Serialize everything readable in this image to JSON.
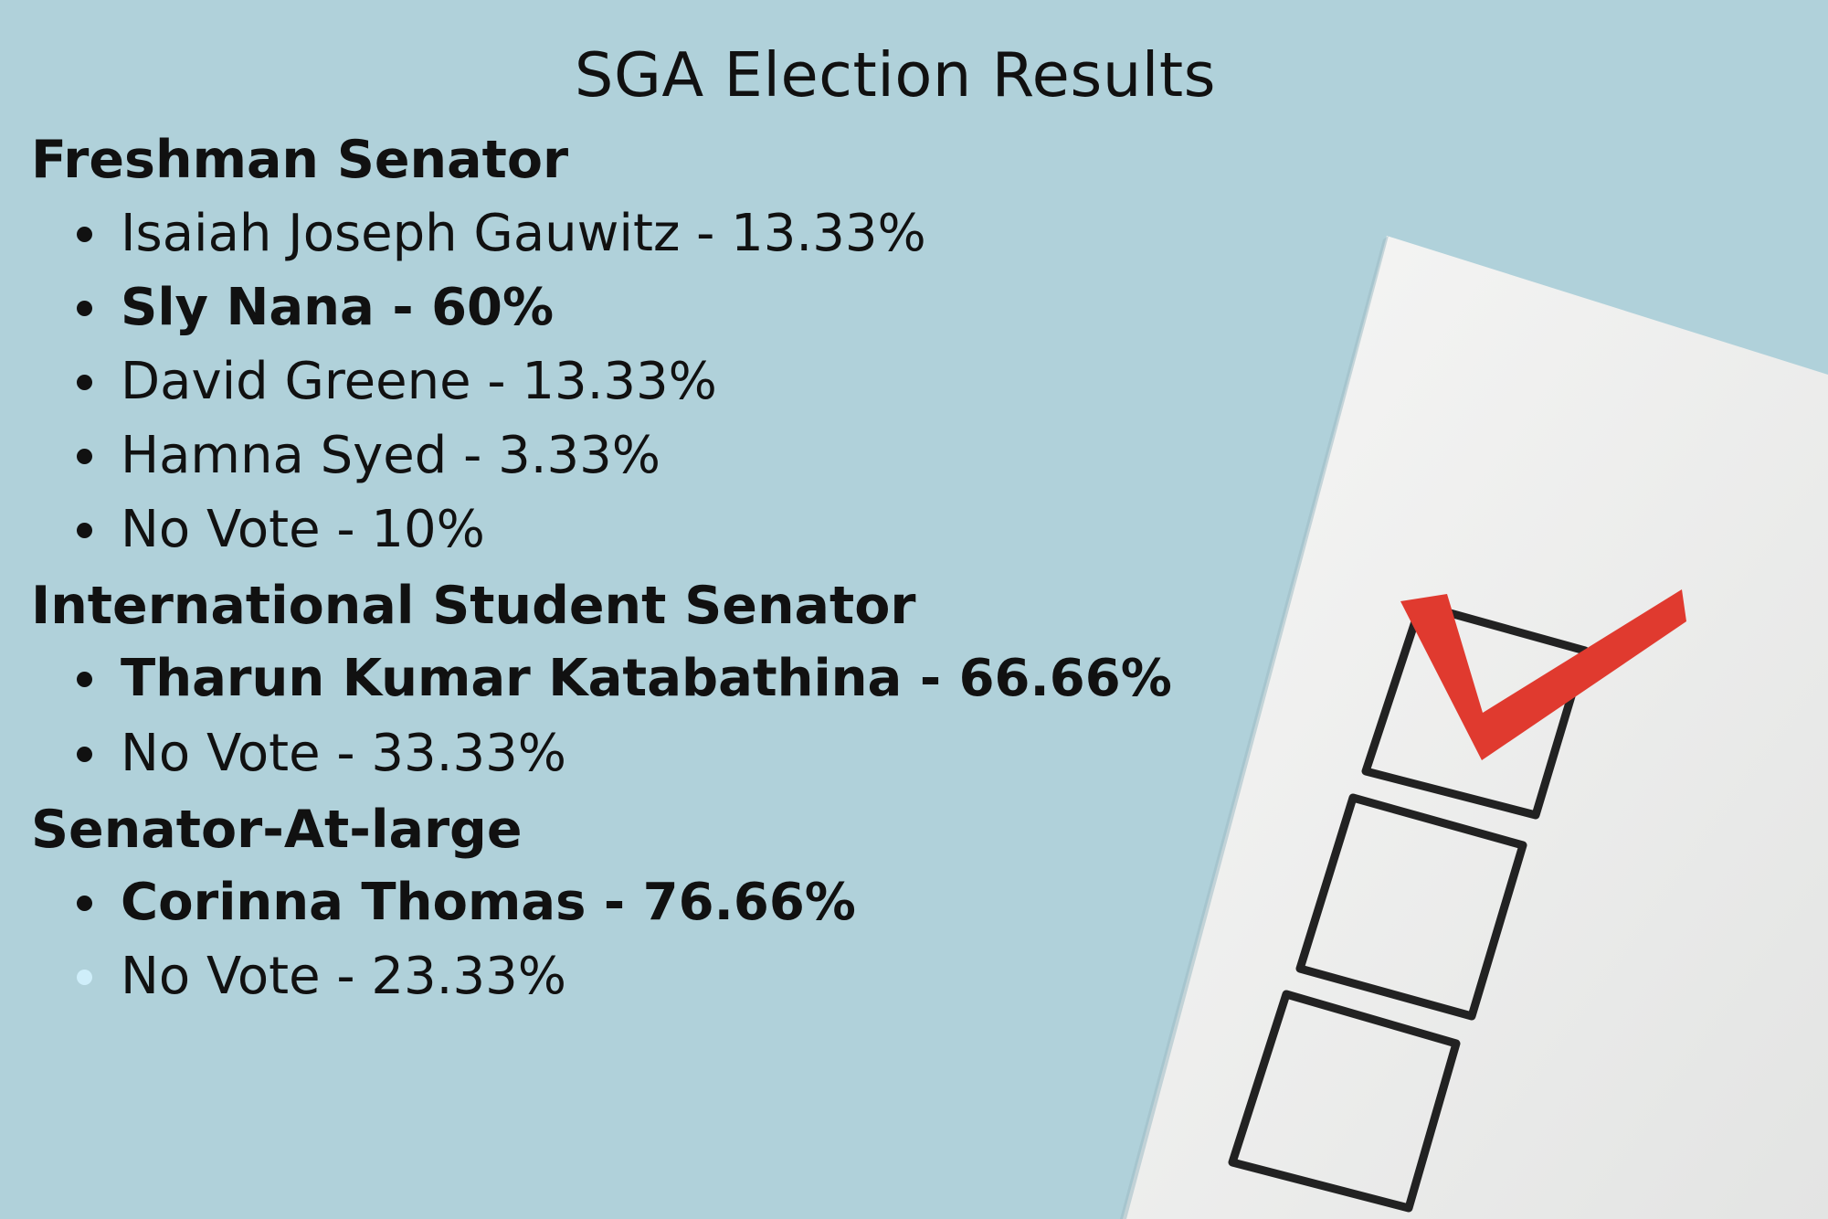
{
  "title": "SGA Election Results",
  "sections": [
    {
      "heading": "Freshman Senator",
      "results": [
        {
          "text": "Isaiah Joseph Gauwitz - 13.33%",
          "winner": false
        },
        {
          "text": "Sly Nana - 60%",
          "winner": true
        },
        {
          "text": "David Greene - 13.33%",
          "winner": false
        },
        {
          "text": "Hamna Syed - 3.33%",
          "winner": false
        },
        {
          "text": "No Vote - 10%",
          "winner": false
        }
      ]
    },
    {
      "heading": "International Student Senator",
      "results": [
        {
          "text": "Tharun Kumar Katabathina - 66.66%",
          "winner": true
        },
        {
          "text": "No Vote - 33.33%",
          "winner": false
        }
      ]
    },
    {
      "heading": "Senator-At-large",
      "results": [
        {
          "text": "Corinna Thomas - 76.66%",
          "winner": true
        },
        {
          "text": "No Vote - 23.33%",
          "winner": false
        }
      ]
    }
  ],
  "colors": {
    "background": "#b0d1da",
    "text": "#111111",
    "paper": "#f1f1f0",
    "checkmark": "#e03a2f",
    "box_outline": "#222222",
    "faded_bullet": "#cfeefa"
  },
  "illustration": {
    "boxes": 3,
    "checked_box": 1,
    "icon": "checkmark-icon"
  }
}
